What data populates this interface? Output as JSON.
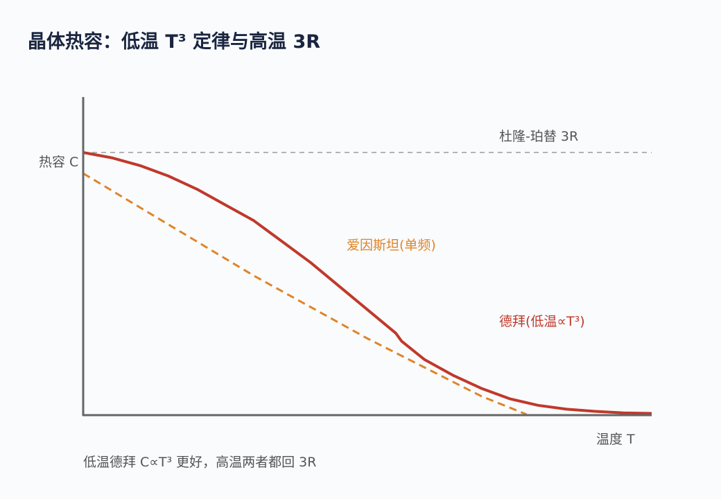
{
  "title": "晶体热容：低温 T³ 定律与高温 3R",
  "caption": "低温德拜 C∝T³ 更好，高温两者都回 3R",
  "colors": {
    "axis": "#666666",
    "reference": "#9a9a9a",
    "einstein": "#e08428",
    "debye": "#c0392b",
    "text": "#555555"
  },
  "chart_data": {
    "type": "line",
    "xlabel": "温度 T",
    "ylabel": "热容 C",
    "xlim": [
      0,
      1
    ],
    "ylim": [
      0,
      1
    ],
    "reference_line": {
      "label": "杜隆-珀替 3R",
      "y": 1.0,
      "style": "dashed"
    },
    "series": [
      {
        "name": "爱因斯坦(单频)",
        "style": "dashed",
        "x": [
          0.0,
          0.1,
          0.2,
          0.3,
          0.4,
          0.5,
          0.6,
          0.7,
          0.78
        ],
        "y": [
          0.92,
          0.79,
          0.66,
          0.53,
          0.41,
          0.29,
          0.18,
          0.07,
          0.0
        ]
      },
      {
        "name": "德拜(低温∝T³)",
        "style": "solid",
        "x": [
          0.0,
          0.05,
          0.1,
          0.15,
          0.2,
          0.25,
          0.3,
          0.35,
          0.4,
          0.45,
          0.5,
          0.55,
          0.56,
          0.6,
          0.65,
          0.7,
          0.75,
          0.8,
          0.85,
          0.9,
          0.95,
          1.0
        ],
        "y": [
          1.0,
          0.98,
          0.95,
          0.91,
          0.86,
          0.8,
          0.74,
          0.66,
          0.58,
          0.49,
          0.4,
          0.31,
          0.28,
          0.21,
          0.15,
          0.1,
          0.06,
          0.035,
          0.02,
          0.012,
          0.006,
          0.004
        ]
      }
    ]
  }
}
